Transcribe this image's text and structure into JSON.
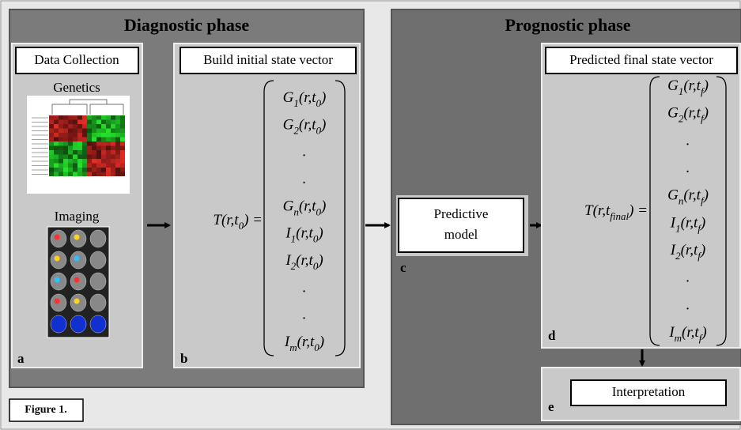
{
  "diagnostic": {
    "title": "Diagnostic phase",
    "panel_a": {
      "heading": "Data Collection",
      "genetics_label": "Genetics",
      "imaging_label": "Imaging",
      "letter": "a"
    },
    "panel_b": {
      "heading": "Build initial state vector",
      "lhs": [
        "T(r,t",
        "0",
        ") ="
      ],
      "entries": [
        [
          "G",
          "1",
          "(r,t",
          "0",
          ")"
        ],
        [
          "G",
          "2",
          "(r,t",
          "0",
          ")"
        ],
        [
          "."
        ],
        [
          "."
        ],
        [
          "G",
          "n",
          "(r,t",
          "0",
          ")"
        ],
        [
          "I",
          "1",
          "(r,t",
          "0",
          ")"
        ],
        [
          "I",
          "2",
          "(r,t",
          "0",
          ")"
        ],
        [
          "."
        ],
        [
          "."
        ],
        [
          "I",
          "m",
          "(r,t",
          "0",
          ")"
        ]
      ],
      "letter": "b"
    }
  },
  "prognostic": {
    "title": "Prognostic phase",
    "panel_c": {
      "lines": [
        "Predictive",
        "model"
      ],
      "letter": "c"
    },
    "panel_d": {
      "heading": "Predicted final state vector",
      "lhs": [
        "T(r,t",
        "final",
        ") ="
      ],
      "entries": [
        [
          "G",
          "1",
          "(r,t",
          "f",
          ")"
        ],
        [
          "G",
          "2",
          "(r,t",
          "f",
          ")"
        ],
        [
          "."
        ],
        [
          "."
        ],
        [
          "G",
          "n",
          "(r,t",
          "f",
          ")"
        ],
        [
          "I",
          "1",
          "(r,t",
          "f",
          ")"
        ],
        [
          "I",
          "2",
          "(r,t",
          "f",
          ")"
        ],
        [
          "."
        ],
        [
          "."
        ],
        [
          "I",
          "m",
          "(r,t",
          "f",
          ")"
        ]
      ],
      "letter": "d"
    },
    "panel_e": {
      "heading": "Interpretation",
      "letter": "e"
    }
  },
  "caption": "Figure 1."
}
